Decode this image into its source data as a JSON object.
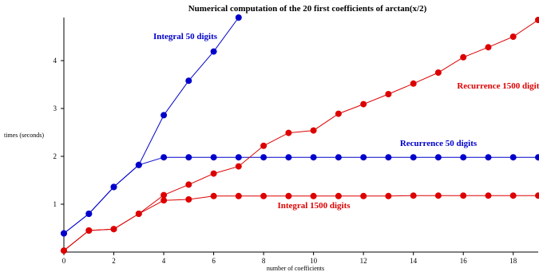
{
  "chart_data": {
    "type": "line",
    "title": "Numerical computation of the 20 first coefficients of arctan(x/2)",
    "xlabel": "number of coefficients",
    "ylabel": "times (seconds)",
    "xlim": [
      0,
      19
    ],
    "ylim": [
      0,
      4.9
    ],
    "x_ticks": [
      0,
      2,
      4,
      6,
      8,
      10,
      12,
      14,
      16,
      18
    ],
    "y_ticks": [
      1,
      2,
      3,
      4
    ],
    "grid": false,
    "series": [
      {
        "name": "Integral 50 digits",
        "color": "#0000cc",
        "x": [
          0,
          1,
          2,
          3,
          4,
          5,
          6,
          7
        ],
        "values": [
          0.39,
          0.8,
          1.36,
          1.82,
          2.86,
          3.58,
          4.19,
          4.9
        ]
      },
      {
        "name": "Recurrence 50 digits",
        "color": "#0000cc",
        "x": [
          0,
          1,
          2,
          3,
          4,
          5,
          6,
          7,
          8,
          9,
          10,
          11,
          12,
          13,
          14,
          15,
          16,
          17,
          18,
          19
        ],
        "values": [
          0.39,
          0.8,
          1.36,
          1.82,
          1.98,
          1.98,
          1.98,
          1.98,
          1.98,
          1.98,
          1.98,
          1.98,
          1.98,
          1.98,
          1.98,
          1.98,
          1.98,
          1.98,
          1.98,
          1.98
        ]
      },
      {
        "name": "Integral 1500 digits",
        "color": "#dd0000",
        "x": [
          0,
          1,
          2,
          3,
          4,
          5,
          6,
          7,
          8,
          9,
          10,
          11,
          12,
          13,
          14,
          15,
          16,
          17,
          18,
          19
        ],
        "values": [
          0.03,
          0.45,
          0.48,
          0.8,
          1.08,
          1.1,
          1.17,
          1.17,
          1.17,
          1.17,
          1.17,
          1.17,
          1.17,
          1.17,
          1.18,
          1.18,
          1.18,
          1.18,
          1.18,
          1.18
        ]
      },
      {
        "name": "Recurrence 1500 digits",
        "color": "#dd0000",
        "x": [
          0,
          1,
          2,
          3,
          4,
          5,
          6,
          7,
          8,
          9,
          10,
          11,
          12,
          13,
          14,
          15,
          16,
          17,
          18,
          19
        ],
        "values": [
          0.03,
          0.45,
          0.48,
          0.8,
          1.19,
          1.41,
          1.64,
          1.79,
          2.22,
          2.49,
          2.54,
          2.89,
          3.09,
          3.3,
          3.52,
          3.75,
          4.07,
          4.28,
          4.5,
          4.85
        ]
      }
    ]
  }
}
